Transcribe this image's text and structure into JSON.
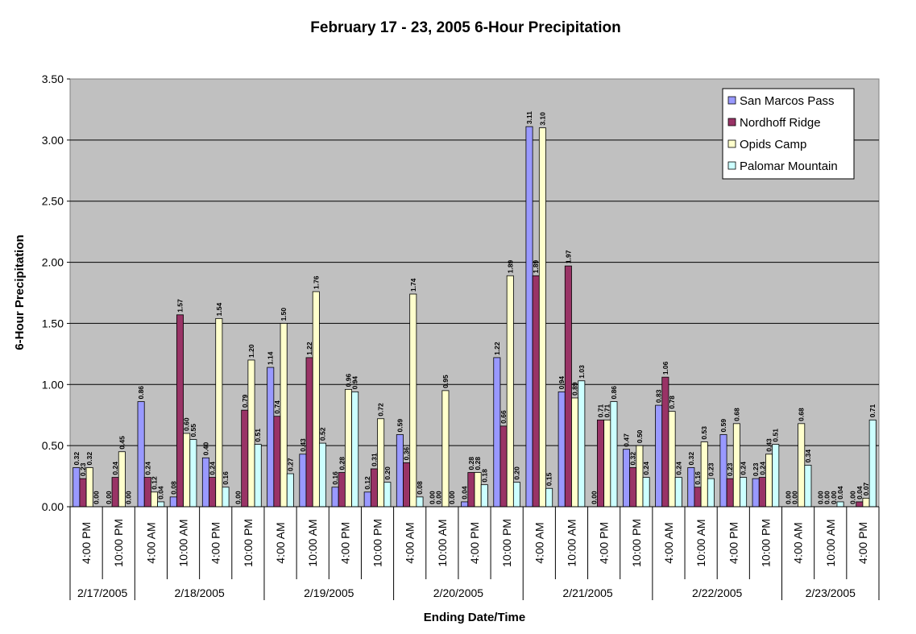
{
  "chart_data": {
    "type": "bar",
    "title": "February 17 - 23, 2005 6-Hour Precipitation",
    "xlabel": "Ending Date/Time",
    "ylabel": "6-Hour Precipitation",
    "ylim": [
      0,
      3.5
    ],
    "yticks": [
      "0.00",
      "0.50",
      "1.00",
      "1.50",
      "2.00",
      "2.50",
      "3.00",
      "3.50"
    ],
    "grid": true,
    "legend_position": "top-right",
    "categories": [
      "4:00 PM",
      "10:00 PM",
      "4:00 AM",
      "10:00 AM",
      "4:00 PM",
      "10:00 PM",
      "4:00 AM",
      "10:00 AM",
      "4:00 PM",
      "10:00 PM",
      "4:00 AM",
      "10:00 AM",
      "4:00 PM",
      "10:00 PM",
      "4:00 AM",
      "10:00 AM",
      "4:00 PM",
      "10:00 PM",
      "4:00 AM",
      "10:00 AM",
      "4:00 PM",
      "10:00 PM",
      "4:00 AM",
      "10:00 AM",
      "4:00 PM"
    ],
    "date_groups": [
      {
        "label": "2/17/2005",
        "count": 2
      },
      {
        "label": "2/18/2005",
        "count": 4
      },
      {
        "label": "2/19/2005",
        "count": 4
      },
      {
        "label": "2/20/2005",
        "count": 4
      },
      {
        "label": "2/21/2005",
        "count": 4
      },
      {
        "label": "2/22/2005",
        "count": 4
      },
      {
        "label": "2/23/2005",
        "count": 3
      }
    ],
    "series": [
      {
        "name": "San Marcos Pass",
        "color": "#9999ff",
        "values": [
          0.32,
          0.0,
          0.86,
          0.08,
          0.4,
          0.0,
          1.14,
          0.43,
          0.16,
          0.12,
          0.59,
          0.0,
          0.04,
          1.22,
          3.11,
          0.94,
          0.0,
          0.47,
          0.83,
          0.32,
          0.59,
          0.23,
          0.0,
          0.0,
          0.0
        ]
      },
      {
        "name": "Nordhoff Ridge",
        "color": "#993366",
        "values": [
          0.23,
          0.24,
          0.24,
          1.57,
          0.24,
          0.79,
          0.74,
          1.22,
          0.28,
          0.31,
          0.36,
          0.0,
          0.28,
          0.66,
          1.89,
          1.97,
          0.71,
          0.32,
          1.06,
          0.16,
          0.23,
          0.24,
          0.0,
          0.0,
          0.04
        ]
      },
      {
        "name": "Opids Camp",
        "color": "#ffffcc",
        "values": [
          0.32,
          0.45,
          0.12,
          0.6,
          1.54,
          1.2,
          1.5,
          1.76,
          0.96,
          0.72,
          1.74,
          0.95,
          0.28,
          1.89,
          3.1,
          0.89,
          0.71,
          0.5,
          0.78,
          0.53,
          0.68,
          0.43,
          0.68,
          0.0,
          0.07
        ]
      },
      {
        "name": "Palomar Mountain",
        "color": "#ccffff",
        "values": [
          0.0,
          0.0,
          0.04,
          0.55,
          0.16,
          0.51,
          0.27,
          0.52,
          0.94,
          0.2,
          0.08,
          0.0,
          0.18,
          0.2,
          0.15,
          1.03,
          0.86,
          0.24,
          0.24,
          0.23,
          0.24,
          0.51,
          0.34,
          0.04,
          0.71
        ]
      }
    ]
  }
}
